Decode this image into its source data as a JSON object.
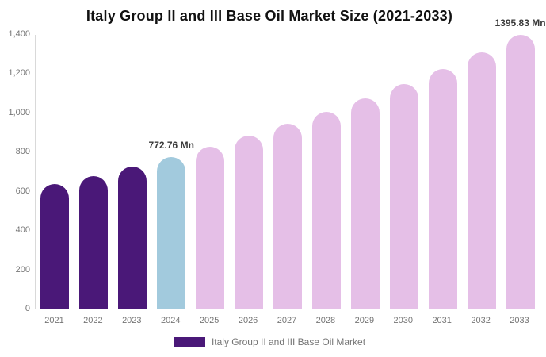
{
  "chart_data": {
    "type": "bar",
    "title": "Italy Group II and III Base Oil Market Size (2021-2033)",
    "categories": [
      "2021",
      "2022",
      "2023",
      "2024",
      "2025",
      "2026",
      "2027",
      "2028",
      "2029",
      "2030",
      "2031",
      "2032",
      "2033"
    ],
    "values": [
      634.6,
      677.7,
      723.7,
      772.76,
      825.2,
      881.2,
      941.1,
      1005.0,
      1073.2,
      1146.1,
      1224.0,
      1307.1,
      1395.83
    ],
    "unit": "Mn",
    "ylim": [
      0,
      1400
    ],
    "ytick_values": [
      0,
      200,
      400,
      600,
      800,
      1000,
      1200,
      1400
    ],
    "ytick_labels": [
      "0",
      "200",
      "400",
      "600",
      "800",
      "1,000",
      "1,200",
      "1,400"
    ],
    "grid": false,
    "bar_colors": [
      "#4a1878",
      "#4a1878",
      "#4a1878",
      "#a2cadd",
      "#e5bfe7",
      "#e5bfe7",
      "#e5bfe7",
      "#e5bfe7",
      "#e5bfe7",
      "#e5bfe7",
      "#e5bfe7",
      "#e5bfe7",
      "#e5bfe7"
    ],
    "annotations": [
      {
        "category": "2024",
        "text": "772.76 Mn"
      },
      {
        "category": "2033",
        "text": "1395.83 Mn"
      }
    ],
    "legend": {
      "position": "bottom",
      "label": "Italy Group II and III Base Oil Market",
      "swatch_color": "#4a1878"
    },
    "colors": {
      "historical": "#4a1878",
      "base_year": "#a2cadd",
      "forecast": "#e5bfe7",
      "axis_text": "#757575",
      "title_text": "#111111",
      "annotation_text": "#3a3a3a"
    }
  }
}
